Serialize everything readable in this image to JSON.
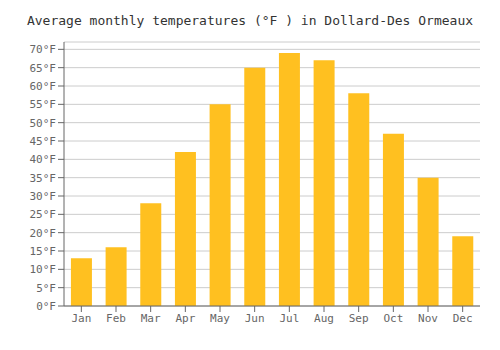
{
  "chart_data": {
    "type": "bar",
    "title": "Average monthly temperatures (°F ) in Dollard-Des Ormeaux",
    "categories": [
      "Jan",
      "Feb",
      "Mar",
      "Apr",
      "May",
      "Jun",
      "Jul",
      "Aug",
      "Sep",
      "Oct",
      "Nov",
      "Dec"
    ],
    "values": [
      13,
      16,
      28,
      42,
      55,
      65,
      69,
      67,
      58,
      47,
      35,
      19
    ],
    "color": "#FFC020",
    "ylim": [
      0,
      72
    ],
    "yticks": [
      {
        "value": 0,
        "label": "0°F"
      },
      {
        "value": 5,
        "label": "5°F"
      },
      {
        "value": 10,
        "label": "10°F"
      },
      {
        "value": 15,
        "label": "15°F"
      },
      {
        "value": 20,
        "label": "20°F"
      },
      {
        "value": 25,
        "label": "25°F"
      },
      {
        "value": 30,
        "label": "30°F"
      },
      {
        "value": 35,
        "label": "35°F"
      },
      {
        "value": 40,
        "label": "40°F"
      },
      {
        "value": 45,
        "label": "45°F"
      },
      {
        "value": 50,
        "label": "50°F"
      },
      {
        "value": 55,
        "label": "55°F"
      },
      {
        "value": 60,
        "label": "60°F"
      },
      {
        "value": 65,
        "label": "65°F"
      },
      {
        "value": 70,
        "label": "70°F"
      }
    ],
    "grid": true
  }
}
